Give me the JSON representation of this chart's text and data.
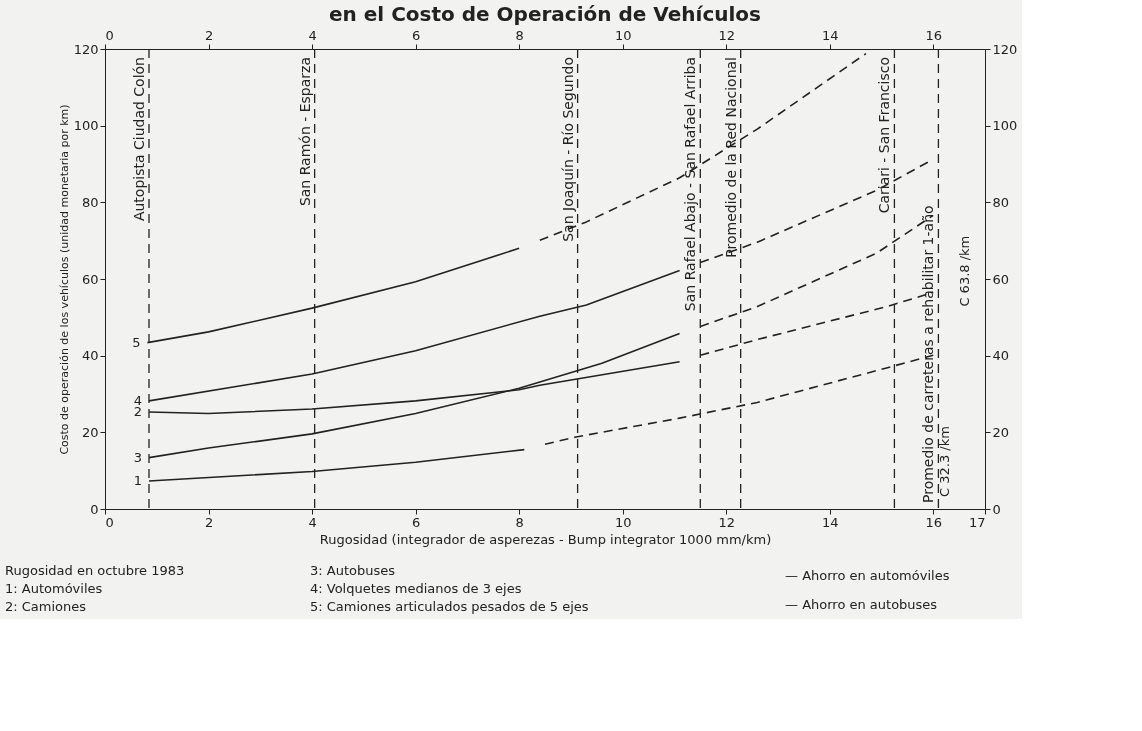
{
  "chart_data": {
    "type": "line",
    "title": "en el Costo de Operación de Vehículos",
    "xlabel": "Rugosidad (integrador de asperezas - Bump integrator 1000 mm/km)",
    "ylabel": "Costo de operación de los vehículos (unidad monetaria por km)",
    "xlim": [
      0,
      17
    ],
    "xticks": [
      0,
      2,
      4,
      6,
      8,
      10,
      12,
      14,
      16,
      17
    ],
    "x2lim": [
      0,
      17
    ],
    "x2ticks": [
      0,
      2,
      4,
      6,
      8,
      10,
      12,
      14,
      16
    ],
    "ylim": [
      0,
      120
    ],
    "yticks": [
      0,
      20,
      40,
      60,
      80,
      100,
      120
    ],
    "y2lim": [
      0,
      120
    ],
    "y2ticks": [
      0,
      20,
      40,
      60,
      80,
      100,
      120
    ],
    "grid": false,
    "marker": "none",
    "series": [
      {
        "name": "5",
        "color": "#222222",
        "line_style": "solid",
        "x": [
          0.82,
          2,
          4,
          6,
          8
        ],
        "values": [
          43.4,
          46.2,
          52.4,
          59.3,
          68
        ]
      },
      {
        "color": "#222222",
        "line_style": "dashed",
        "x": [
          8.4,
          9.3,
          11.1,
          12.6,
          14.7
        ],
        "values": [
          70.1,
          74.9,
          86.4,
          99.1,
          118.8
        ]
      },
      {
        "name": "4",
        "color": "#222222",
        "line_style": "solid",
        "x": [
          0.85,
          4,
          6,
          8.4,
          9.3,
          11.1
        ],
        "values": [
          28.2,
          35.2,
          41.3,
          50.3,
          53.2,
          62.2
        ]
      },
      {
        "color": "#222222",
        "line_style": "dashed",
        "x": [
          11.5,
          12.6,
          14.9,
          15.9
        ],
        "values": [
          64.3,
          69.6,
          83.1,
          90.5
        ]
      },
      {
        "name": "2",
        "color": "#222222",
        "line_style": "solid",
        "x": [
          0.85,
          2,
          4,
          6,
          8,
          8.4,
          11.1
        ],
        "values": [
          25.3,
          24.9,
          26.1,
          28.2,
          31.1,
          32.3,
          38.4
        ]
      },
      {
        "color": "#222222",
        "line_style": "dashed",
        "x": [
          11.5,
          12.6,
          15.1,
          16
        ],
        "values": [
          40.1,
          44.2,
          52.8,
          56.5
        ]
      },
      {
        "name": "3",
        "color": "#222222",
        "line_style": "solid",
        "x": [
          0.85,
          2,
          4,
          6,
          8,
          9.6,
          11.1
        ],
        "values": [
          13.4,
          15.9,
          19.6,
          24.9,
          31.5,
          38,
          45.8
        ]
      },
      {
        "color": "#222222",
        "line_style": "dashed",
        "x": [
          11.5,
          12.6,
          14.9,
          16
        ],
        "values": [
          47.6,
          52.8,
          66.7,
          76.6
        ]
      },
      {
        "name": "1",
        "color": "#222222",
        "line_style": "solid",
        "x": [
          0.85,
          4,
          6,
          8.1
        ],
        "values": [
          7.3,
          9.8,
          12.2,
          15.5
        ]
      },
      {
        "color": "#222222",
        "line_style": "dashed",
        "x": [
          8.5,
          9.1,
          11.1,
          12.6,
          15.1,
          16
        ],
        "values": [
          16.9,
          18.8,
          23.7,
          27.8,
          36.8,
          40.1
        ]
      }
    ],
    "ref_lines": [
      {
        "axis": "x",
        "value": 0.85,
        "label": "Autopista Ciudad Colón",
        "line_style": "dashed",
        "color": "#222222"
      },
      {
        "axis": "x",
        "value": 4.05,
        "label": "San Ramón - Esparza",
        "line_style": "dashed",
        "color": "#222222"
      },
      {
        "axis": "x",
        "value": 9.13,
        "label": "San Joaquín - Río Segundo",
        "line_style": "dashed",
        "color": "#222222"
      },
      {
        "axis": "x",
        "value": 11.5,
        "label": "San Rafael Abajo - San Rafael Arriba",
        "line_style": "dashed",
        "color": "#222222"
      },
      {
        "axis": "x",
        "value": 12.28,
        "label": "Promedio de la Red Nacional",
        "line_style": "dashed",
        "color": "#222222"
      },
      {
        "axis": "x",
        "value": 15.25,
        "label": "Cariari - San Francisco",
        "line_style": "dashed",
        "color": "#222222"
      },
      {
        "axis": "x",
        "value": 16.1,
        "label": "Promedio de carreteras a rehabilitar 1-año",
        "line_style": "dashed",
        "color": "#222222"
      }
    ],
    "annotations": [
      "C 32.3 /km",
      "C 63.8 /km",
      "Rugosidad en octubre 1983",
      "1: Automóviles",
      "2: Camiones",
      "3: Autobuses",
      "4: Volquetes medianos de 3 ejes",
      "5: Camiones articulados pesados de 5 ejes",
      "— Ahorro en automóviles",
      "— Ahorro en autobuses"
    ]
  }
}
